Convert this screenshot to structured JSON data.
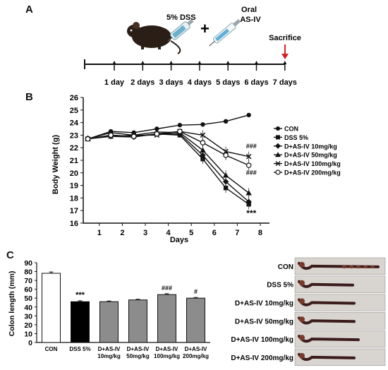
{
  "panels": {
    "a": "A",
    "b": "B",
    "c": "C"
  },
  "timeline": {
    "treatment_label": "5% DSS",
    "plus": "+",
    "oral_line1": "Oral",
    "oral_line2": "AS-IV",
    "sacrifice": "Sacrifice",
    "days": [
      "1 day",
      "2 days",
      "3 days",
      "4 days",
      "5 days",
      "6 days",
      "7 days"
    ],
    "colors": {
      "sacrifice_arrow": "#d42020",
      "mouse": "#2a1e17"
    },
    "icons": [
      "mouse-icon",
      "syringe-icon",
      "oral-syringe-icon",
      "red-arrow-icon"
    ]
  },
  "chart_data": [
    {
      "type": "line",
      "xlabel": "Days",
      "ylabel": "Body Weight (g)",
      "xlim": [
        0.3,
        8.4
      ],
      "ylim": [
        16,
        26
      ],
      "xticks": [
        1,
        2,
        3,
        4,
        5,
        6,
        7,
        8
      ],
      "yticks": [
        16,
        17,
        18,
        19,
        20,
        21,
        22,
        23,
        24,
        25,
        26
      ],
      "x": [
        0.5,
        1.5,
        2.5,
        3.5,
        4.5,
        5.5,
        6.5,
        7.5
      ],
      "legend_position": "right",
      "series": [
        {
          "name": "CON",
          "marker": "circle-filled",
          "values": [
            22.7,
            23.3,
            23.2,
            23.5,
            23.8,
            23.85,
            24.1,
            24.6
          ]
        },
        {
          "name": "DSS 5%",
          "marker": "square-filled",
          "values": [
            22.7,
            23.0,
            22.9,
            23.1,
            23.0,
            21.1,
            18.8,
            17.5
          ]
        },
        {
          "name": "D+AS-IV 10mg/kg",
          "marker": "diamond-filled",
          "values": [
            22.75,
            22.9,
            22.85,
            23.1,
            23.1,
            21.4,
            19.3,
            17.7
          ]
        },
        {
          "name": "D+AS-IV 50mg/kg",
          "marker": "triangle-filled",
          "values": [
            22.7,
            23.2,
            23.0,
            23.25,
            23.2,
            21.8,
            19.8,
            18.4
          ]
        },
        {
          "name": "D+AS-IV 100mg/kg",
          "marker": "x-cross",
          "values": [
            22.7,
            22.9,
            23.0,
            23.0,
            23.3,
            23.0,
            21.7,
            21.3
          ]
        },
        {
          "name": "D+AS-IV 200mg/kg",
          "marker": "circle-open",
          "values": [
            22.7,
            23.0,
            22.9,
            23.1,
            23.3,
            22.4,
            21.4,
            20.6
          ]
        }
      ],
      "annotations": [
        {
          "text": "###",
          "x": 7.55,
          "y": 21.95
        },
        {
          "text": "###",
          "x": 7.55,
          "y": 19.85
        },
        {
          "text": "***",
          "x": 7.55,
          "y": 16.55
        }
      ]
    },
    {
      "type": "bar",
      "ylabel": "Colon length (mm)",
      "ylim": [
        0,
        90
      ],
      "yticks": [
        0,
        10,
        20,
        30,
        40,
        50,
        60,
        70,
        80,
        90
      ],
      "categories": [
        [
          "CON"
        ],
        [
          "DSS 5%"
        ],
        [
          "D+AS-IV",
          "10mg/kg"
        ],
        [
          "D+AS-IV",
          "50mg/kg"
        ],
        [
          "D+AS-IV",
          "100mg/kg"
        ],
        [
          "D+AS-IV",
          "200mg/kg"
        ]
      ],
      "values": [
        78,
        46,
        46,
        48,
        54,
        50
      ],
      "errors": [
        1.5,
        1.0,
        0.8,
        0.8,
        1.0,
        0.8
      ],
      "colors": [
        "#ffffff",
        "#000000",
        "#8c8c8c",
        "#8c8c8c",
        "#8c8c8c",
        "#8c8c8c"
      ],
      "annotations": [
        "",
        "***",
        "",
        "",
        "###",
        "#"
      ]
    }
  ],
  "photos": {
    "labels": [
      "CON",
      "DSS 5%",
      "D+AS-IV 10mg/kg",
      "D+AS-IV 50mg/kg",
      "D+AS-IV 100mg/kg",
      "D+AS-IV 200mg/kg"
    ],
    "colors": {
      "background": "#d8d4cf",
      "tissue": "#3b1c1c",
      "accent": "#7a3a2a"
    }
  }
}
